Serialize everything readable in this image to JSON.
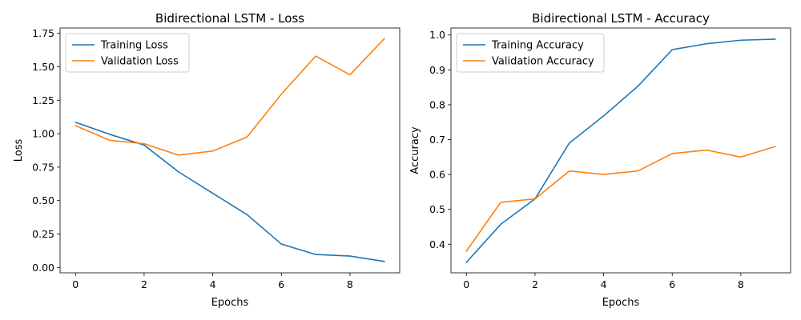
{
  "chart_data": [
    {
      "type": "line",
      "title": "Bidirectional LSTM - Loss",
      "xlabel": "Epochs",
      "ylabel": "Loss",
      "x": [
        0,
        1,
        2,
        3,
        4,
        5,
        6,
        7,
        8,
        9
      ],
      "xlim": [
        -0.45,
        9.45
      ],
      "ylim": [
        -0.04,
        1.79
      ],
      "xticks": [
        0,
        2,
        4,
        6,
        8
      ],
      "xtick_labels": [
        "0",
        "2",
        "4",
        "6",
        "8"
      ],
      "yticks": [
        0,
        0.25,
        0.5,
        0.75,
        1.0,
        1.25,
        1.5,
        1.75
      ],
      "ytick_labels": [
        "0.00",
        "0.25",
        "0.50",
        "0.75",
        "1.00",
        "1.25",
        "1.50",
        "1.75"
      ],
      "grid": false,
      "legend_position": "top-left",
      "series": [
        {
          "name": "Training Loss",
          "color": "#1f77b4",
          "values": [
            1.085,
            0.995,
            0.915,
            0.715,
            0.555,
            0.395,
            0.175,
            0.097,
            0.085,
            0.045
          ]
        },
        {
          "name": "Validation Loss",
          "color": "#ff7f0e",
          "values": [
            1.06,
            0.95,
            0.925,
            0.84,
            0.87,
            0.975,
            1.295,
            1.58,
            1.44,
            1.71
          ]
        }
      ]
    },
    {
      "type": "line",
      "title": "Bidirectional LSTM - Accuracy",
      "xlabel": "Epochs",
      "ylabel": "Accuracy",
      "x": [
        0,
        1,
        2,
        3,
        4,
        5,
        6,
        7,
        8,
        9
      ],
      "xlim": [
        -0.45,
        9.45
      ],
      "ylim": [
        0.318,
        1.02
      ],
      "xticks": [
        0,
        2,
        4,
        6,
        8
      ],
      "xtick_labels": [
        "0",
        "2",
        "4",
        "6",
        "8"
      ],
      "yticks": [
        0.4,
        0.5,
        0.6,
        0.7,
        0.8,
        0.9,
        1.0
      ],
      "ytick_labels": [
        "0.4",
        "0.5",
        "0.6",
        "0.7",
        "0.8",
        "0.9",
        "1.0"
      ],
      "grid": false,
      "legend_position": "top-left",
      "series": [
        {
          "name": "Training Accuracy",
          "color": "#1f77b4",
          "values": [
            0.348,
            0.457,
            0.53,
            0.69,
            0.768,
            0.853,
            0.958,
            0.975,
            0.985,
            0.988
          ]
        },
        {
          "name": "Validation Accuracy",
          "color": "#ff7f0e",
          "values": [
            0.38,
            0.52,
            0.53,
            0.61,
            0.6,
            0.61,
            0.66,
            0.67,
            0.65,
            0.68
          ]
        }
      ]
    }
  ]
}
